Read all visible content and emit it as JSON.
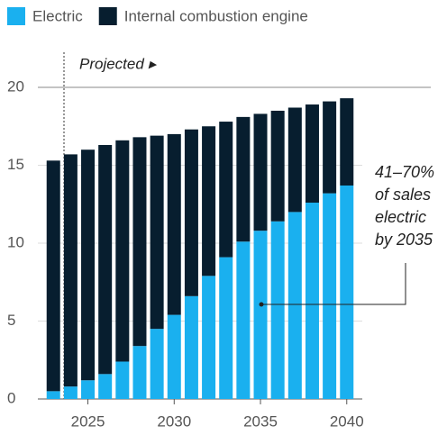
{
  "chart_data": {
    "type": "stacked_bar",
    "x": [
      2023,
      2024,
      2025,
      2026,
      2027,
      2028,
      2029,
      2030,
      2031,
      2032,
      2033,
      2034,
      2035,
      2036,
      2037,
      2038,
      2039,
      2040
    ],
    "series": [
      {
        "name": "Electric",
        "color": "#1ab0ef",
        "values": [
          0.5,
          0.8,
          1.2,
          1.6,
          2.4,
          3.4,
          4.5,
          5.4,
          6.6,
          7.9,
          9.1,
          10.1,
          10.8,
          11.4,
          12.0,
          12.6,
          13.2,
          13.7
        ]
      },
      {
        "name": "Internal combustion engine",
        "color": "#071e2f",
        "values": [
          14.8,
          14.9,
          14.8,
          14.7,
          14.2,
          13.4,
          12.4,
          11.6,
          10.7,
          9.6,
          8.7,
          8.0,
          7.5,
          7.1,
          6.7,
          6.3,
          5.9,
          5.6
        ]
      }
    ],
    "xlim": [
      2022.1,
      2040.9
    ],
    "xticks": [
      2025,
      2030,
      2035,
      2040
    ],
    "ylim": [
      0,
      20
    ],
    "yticks": [
      0,
      5,
      10,
      15,
      20
    ],
    "grid": true,
    "projected_label": "Projected ▸",
    "annotation": [
      "41–70%",
      "of sales",
      "electric",
      "by 2035"
    ]
  }
}
